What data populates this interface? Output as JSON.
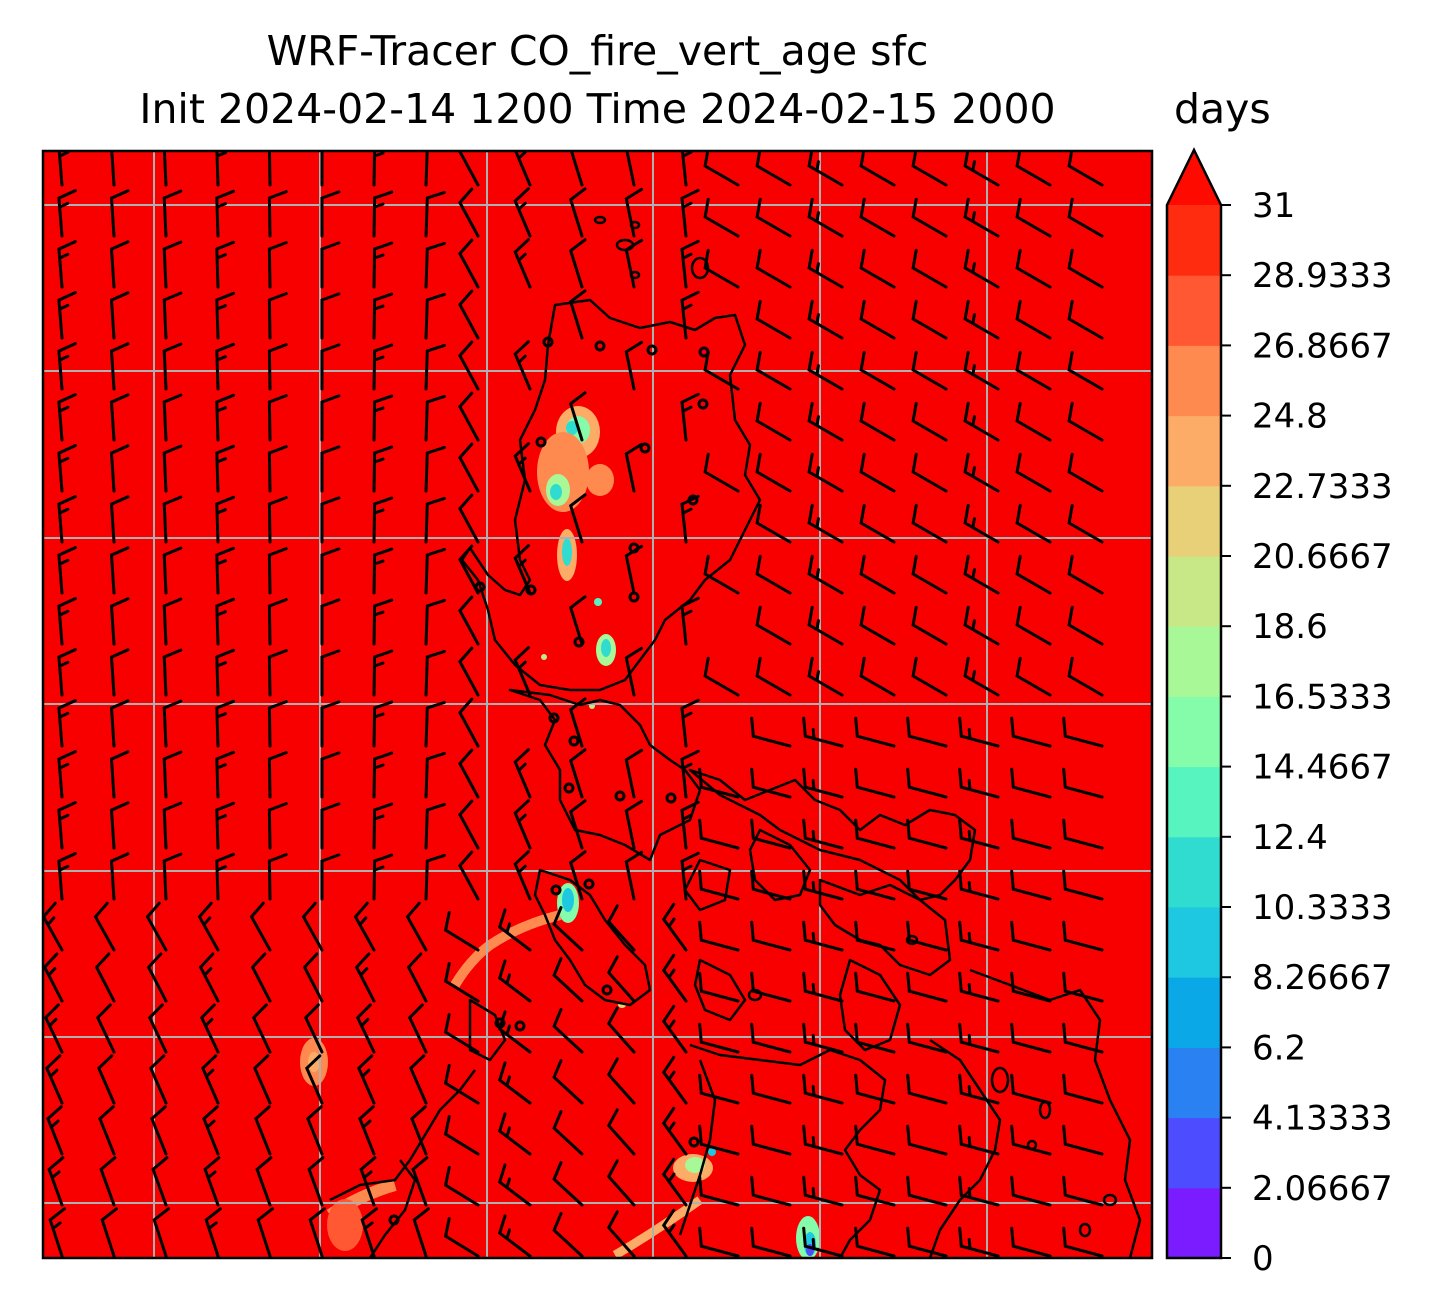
{
  "chart_data": {
    "type": "heatmap",
    "title": "WRF-Tracer CO_fire_vert_age sfc",
    "subtitle": "Init 2024-02-14 1200 Time 2024-02-15 2000",
    "units": "days",
    "colormap": "rainbow",
    "background_value_color": "#f80000",
    "colorbar": {
      "ticks": [
        0,
        2.06667,
        4.13333,
        6.2,
        8.26667,
        10.3333,
        12.4,
        14.4667,
        16.5333,
        18.6,
        20.6667,
        22.7333,
        24.8,
        26.8667,
        28.9333,
        31
      ],
      "tick_labels": [
        "0",
        "2.06667",
        "4.13333",
        "6.2",
        "8.26667",
        "10.3333",
        "12.4",
        "14.4667",
        "16.5333",
        "18.6",
        "20.6667",
        "22.7333",
        "24.8",
        "26.8667",
        "28.9333",
        "31"
      ],
      "colors": [
        "#7a1cff",
        "#4e4cff",
        "#2a82f2",
        "#0aa8e6",
        "#1ec8e0",
        "#30dcd0",
        "#58f4c0",
        "#84fcaa",
        "#a8f898",
        "#c8e888",
        "#e8d078",
        "#fcac66",
        "#ff8a50",
        "#ff5832",
        "#ff2c10"
      ],
      "extend": "max",
      "extend_color": "#ff0a00",
      "range": [
        0,
        31
      ]
    },
    "overlays": [
      "coastlines",
      "wind-barbs",
      "gridlines"
    ],
    "grid": true
  }
}
